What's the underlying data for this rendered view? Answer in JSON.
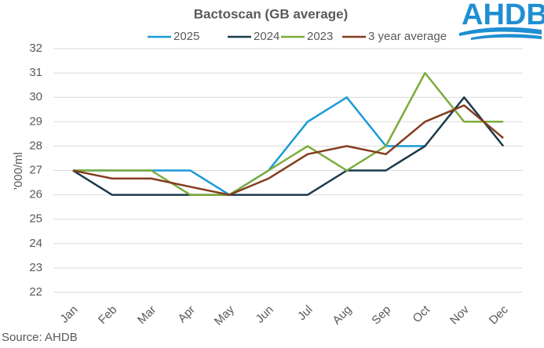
{
  "logo": "AHDB",
  "chart_data": {
    "type": "line",
    "title": "Bactoscan (GB average)",
    "y_label": "'000/ml",
    "source": "Source: AHDB",
    "categories": [
      "Jan",
      "Feb",
      "Mar",
      "Apr",
      "May",
      "Jun",
      "Jul",
      "Aug",
      "Sep",
      "Oct",
      "Nov",
      "Dec"
    ],
    "series": [
      {
        "name": "2025",
        "color": "#1c9ad6",
        "values": [
          27,
          27,
          27,
          27,
          26,
          27,
          29,
          30,
          28,
          28,
          null,
          null
        ]
      },
      {
        "name": "2024",
        "color": "#1b3a4b",
        "values": [
          27,
          26,
          26,
          26,
          26,
          26,
          26,
          27,
          27,
          28,
          30,
          28
        ]
      },
      {
        "name": "2023",
        "color": "#7aac3c",
        "values": [
          27,
          27,
          27,
          26,
          26,
          27,
          28,
          27,
          28,
          31,
          29,
          29
        ]
      },
      {
        "name": "3 year average",
        "color": "#843c1e",
        "values": [
          27,
          26.67,
          26.67,
          26.33,
          26,
          26.67,
          27.67,
          28,
          27.67,
          29,
          29.67,
          28.33
        ]
      }
    ],
    "ylim": [
      22,
      32
    ],
    "yticks": [
      22,
      23,
      24,
      25,
      26,
      27,
      28,
      29,
      30,
      31,
      32
    ],
    "grid": true,
    "legend": "top"
  }
}
